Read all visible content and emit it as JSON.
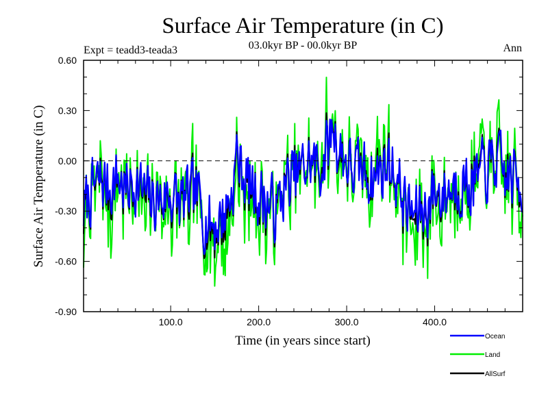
{
  "chart_data": {
    "type": "line",
    "title": "Surface Air Temperature (in C)",
    "subtitle": "03.0kyr BP - 00.0kyr BP",
    "left_label": "Expt = teadd3-teada3",
    "right_label": "Ann",
    "xlabel": "Time (in years since start)",
    "ylabel": "Surface Air Temperature (in C)",
    "xlim": [
      1,
      500
    ],
    "ylim": [
      -0.9,
      0.6
    ],
    "x_ticks": [
      100,
      200,
      300,
      400
    ],
    "x_tick_labels": [
      "100.0",
      "200.0",
      "300.0",
      "400.0"
    ],
    "y_ticks": [
      -0.9,
      -0.6,
      -0.3,
      0.0,
      0.3,
      0.6
    ],
    "y_tick_labels": [
      "-0.90",
      "-0.60",
      "-0.30",
      "0.00",
      "0.30",
      "0.60"
    ],
    "reference_line": 0.0,
    "anchor_x": [
      1,
      10,
      20,
      30,
      40,
      50,
      60,
      70,
      80,
      90,
      100,
      110,
      120,
      130,
      140,
      150,
      160,
      170,
      175,
      180,
      190,
      200,
      210,
      220,
      230,
      240,
      250,
      260,
      270,
      280,
      285,
      290,
      300,
      310,
      320,
      330,
      340,
      350,
      360,
      370,
      380,
      390,
      400,
      410,
      420,
      430,
      440,
      450,
      460,
      470,
      480,
      490,
      500
    ],
    "series": [
      {
        "name": "Ocean",
        "color": "#0000ff",
        "values": [
          -0.3,
          -0.18,
          -0.12,
          -0.15,
          -0.1,
          -0.18,
          -0.12,
          -0.2,
          -0.25,
          -0.22,
          -0.2,
          -0.25,
          -0.22,
          -0.2,
          -0.35,
          -0.38,
          -0.32,
          -0.18,
          0.05,
          -0.05,
          -0.15,
          -0.2,
          -0.25,
          -0.3,
          -0.15,
          -0.1,
          -0.05,
          0.0,
          -0.05,
          0.1,
          0.22,
          0.08,
          0.0,
          -0.08,
          -0.05,
          -0.1,
          -0.05,
          0.0,
          -0.15,
          -0.3,
          -0.32,
          -0.28,
          -0.18,
          -0.2,
          -0.15,
          -0.12,
          -0.15,
          -0.1,
          -0.05,
          0.0,
          -0.1,
          -0.1,
          -0.15
        ]
      },
      {
        "name": "Land",
        "color": "#00ee00",
        "values": [
          -0.35,
          -0.25,
          -0.2,
          -0.22,
          -0.15,
          -0.25,
          -0.18,
          -0.3,
          -0.32,
          -0.3,
          -0.25,
          -0.32,
          -0.28,
          -0.28,
          -0.45,
          -0.48,
          -0.42,
          -0.22,
          0.1,
          -0.05,
          -0.2,
          -0.28,
          -0.32,
          -0.38,
          -0.2,
          -0.12,
          -0.05,
          0.02,
          -0.05,
          0.15,
          0.3,
          0.1,
          0.02,
          -0.08,
          -0.05,
          -0.12,
          -0.05,
          0.02,
          -0.2,
          -0.38,
          -0.42,
          -0.35,
          -0.22,
          -0.25,
          -0.18,
          -0.15,
          -0.2,
          -0.12,
          -0.05,
          0.02,
          -0.12,
          -0.12,
          -0.2
        ]
      },
      {
        "name": "AllSurf",
        "color": "#000000",
        "values": [
          -0.31,
          -0.2,
          -0.14,
          -0.17,
          -0.11,
          -0.2,
          -0.14,
          -0.23,
          -0.27,
          -0.24,
          -0.21,
          -0.27,
          -0.24,
          -0.22,
          -0.38,
          -0.41,
          -0.35,
          -0.19,
          0.06,
          -0.05,
          -0.16,
          -0.22,
          -0.27,
          -0.32,
          -0.16,
          -0.1,
          -0.05,
          0.0,
          -0.05,
          0.11,
          0.24,
          0.08,
          0.0,
          -0.08,
          -0.05,
          -0.1,
          -0.05,
          0.0,
          -0.16,
          -0.32,
          -0.35,
          -0.3,
          -0.19,
          -0.21,
          -0.16,
          -0.13,
          -0.16,
          -0.1,
          -0.05,
          0.0,
          -0.1,
          -0.1,
          -0.16
        ]
      }
    ],
    "legend_position": "bottom-right"
  }
}
